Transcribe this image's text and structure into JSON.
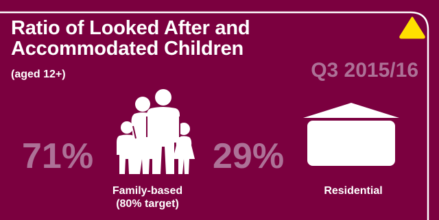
{
  "colors": {
    "background": "#7b003f",
    "border": "#ffffff",
    "accent_text": "#ad7197",
    "warning": "#ffe000"
  },
  "card": {
    "title_line1": "Ratio of Looked After and",
    "title_line2": "Accommodated Children",
    "subtitle": "(aged 12+)",
    "period": "Q3 2015/16",
    "status_icon": "warning-triangle-icon"
  },
  "family_based": {
    "percent": "71%",
    "label_line1": "Family-based",
    "label_line2": "(80% target)",
    "icon": "family-icon"
  },
  "residential": {
    "percent": "29%",
    "label": "Residential",
    "icon": "building-icon"
  }
}
